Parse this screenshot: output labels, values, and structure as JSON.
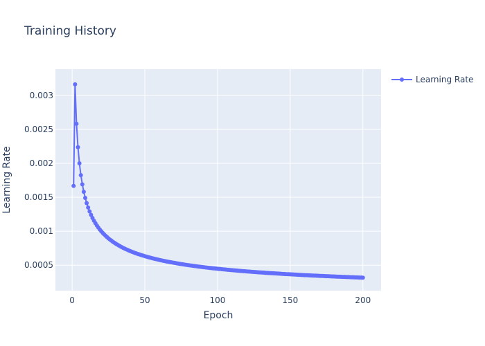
{
  "chart_data": {
    "type": "line",
    "title": "Training History",
    "xlabel": "Epoch",
    "ylabel": "Learning Rate",
    "xlim": [
      -11.5,
      212.5
    ],
    "ylim": [
      0.000125,
      0.003385
    ],
    "x_ticks": [
      0,
      50,
      100,
      150,
      200
    ],
    "x_tick_labels": [
      "0",
      "50",
      "100",
      "150",
      "200"
    ],
    "y_ticks": [
      0.0005,
      0.001,
      0.0015,
      0.002,
      0.0025,
      0.003
    ],
    "y_tick_labels": [
      "0.0005",
      "0.001",
      "0.0015",
      "0.002",
      "0.0025",
      "0.003"
    ],
    "grid": true,
    "legend_position": "top-right",
    "peak_value": 0.003162,
    "warmup_start_value": 0.001667,
    "epochs": 200,
    "series": [
      {
        "name": "Learning Rate",
        "color": "#636efa",
        "marker": "circle"
      }
    ]
  },
  "colors": {
    "plot_background": "#e5ecf6",
    "grid": "#ffffff",
    "text": "#2a3f5f",
    "series": "#636efa"
  }
}
